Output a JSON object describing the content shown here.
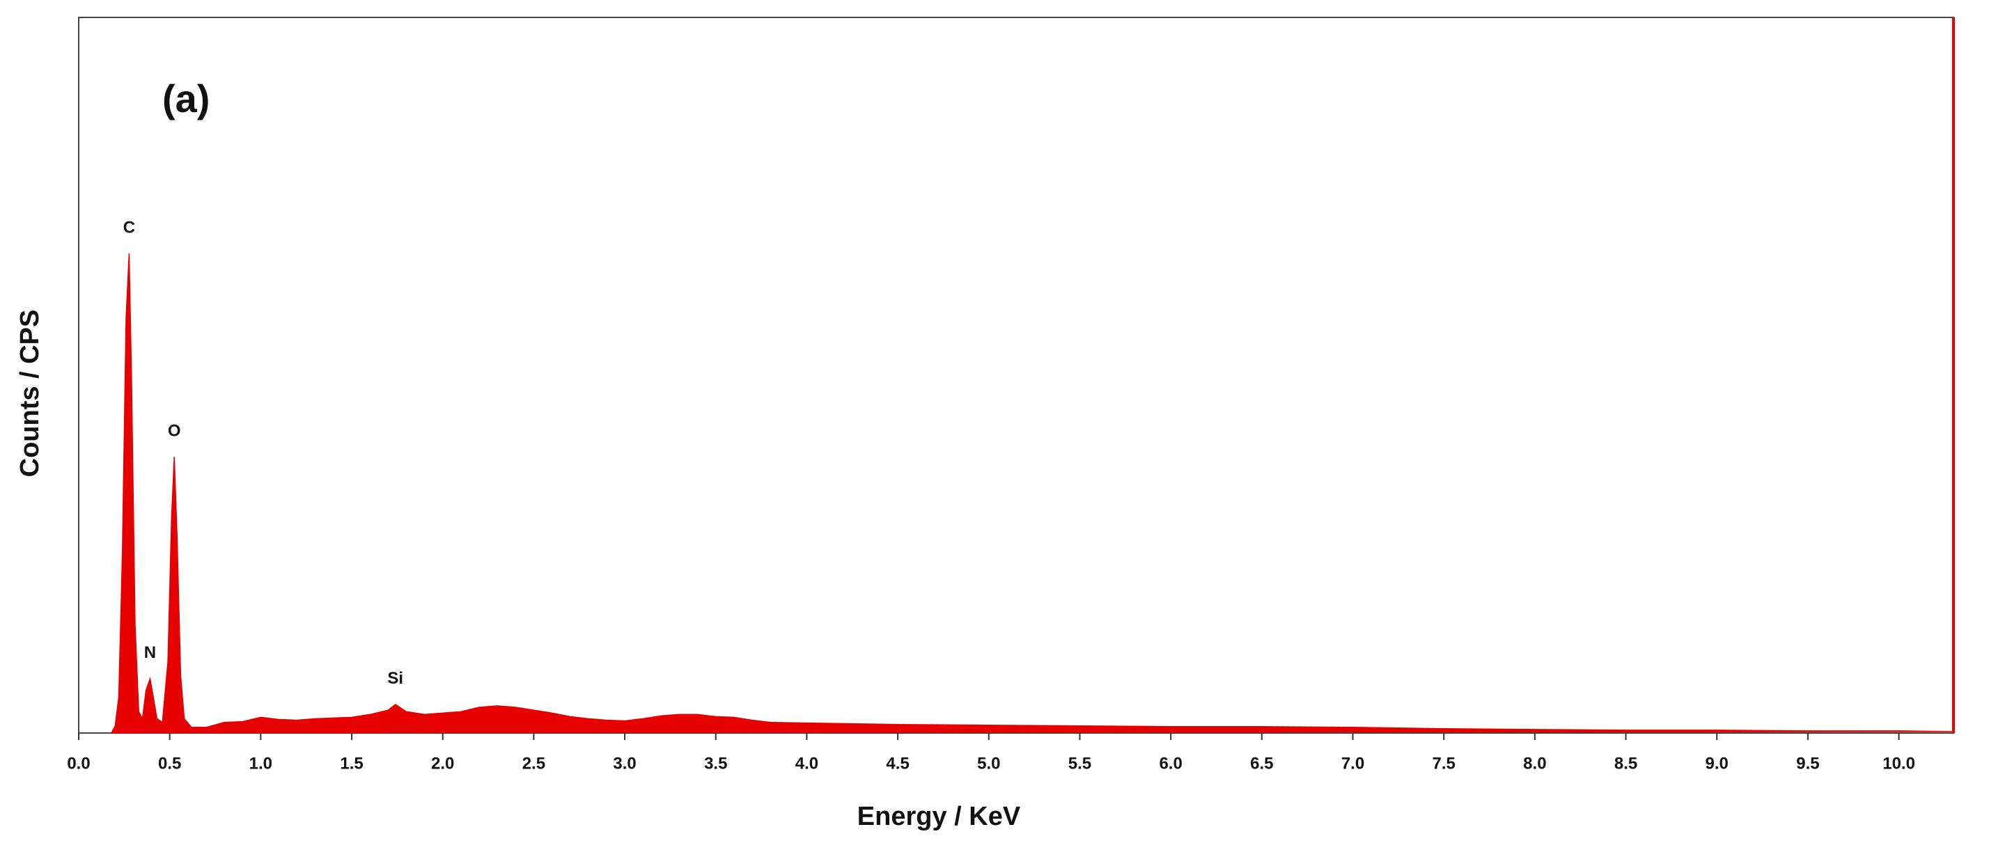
{
  "chart_data": {
    "type": "area",
    "panel_label": "(a)",
    "xlabel": "Energy / KeV",
    "ylabel": "Counts / CPS",
    "color": "#e60000",
    "x": [
      0.18,
      0.2,
      0.22,
      0.24,
      0.26,
      0.277,
      0.29,
      0.31,
      0.33,
      0.35,
      0.37,
      0.392,
      0.41,
      0.43,
      0.46,
      0.49,
      0.51,
      0.525,
      0.54,
      0.56,
      0.58,
      0.62,
      0.7,
      0.8,
      0.9,
      1.0,
      1.1,
      1.2,
      1.3,
      1.4,
      1.5,
      1.6,
      1.7,
      1.74,
      1.8,
      1.9,
      2.0,
      2.1,
      2.2,
      2.3,
      2.4,
      2.5,
      2.6,
      2.7,
      2.8,
      2.9,
      3.0,
      3.1,
      3.2,
      3.3,
      3.4,
      3.5,
      3.6,
      3.7,
      3.8,
      4.0,
      4.5,
      5.0,
      5.5,
      6.0,
      6.5,
      7.0,
      7.5,
      8.0,
      8.5,
      9.0,
      9.5,
      10.0,
      10.3
    ],
    "values": [
      0,
      1,
      5,
      25,
      58,
      67,
      50,
      15,
      3,
      2,
      6,
      7.6,
      5,
      2,
      1.5,
      10,
      30,
      38.6,
      28,
      8,
      2,
      0.8,
      0.8,
      1.5,
      1.6,
      2.2,
      1.9,
      1.8,
      2,
      2.1,
      2.2,
      2.6,
      3.2,
      4,
      3,
      2.6,
      2.8,
      3,
      3.6,
      3.8,
      3.6,
      3.2,
      2.8,
      2.3,
      2,
      1.8,
      1.7,
      2,
      2.4,
      2.6,
      2.6,
      2.3,
      2.2,
      1.8,
      1.5,
      1.4,
      1.2,
      1.1,
      1.0,
      0.9,
      0.9,
      0.8,
      0.6,
      0.5,
      0.4,
      0.4,
      0.3,
      0.3,
      0.2
    ],
    "peaks": [
      {
        "label": "C",
        "x": 0.277,
        "y": 67
      },
      {
        "label": "N",
        "x": 0.392,
        "y": 7.6
      },
      {
        "label": "O",
        "x": 0.525,
        "y": 38.6
      },
      {
        "label": "Si",
        "x": 1.74,
        "y": 4
      }
    ],
    "xlim": [
      0,
      10.3
    ],
    "ylim": [
      0,
      100
    ],
    "xticks": [
      {
        "value": 0,
        "label": "0.0"
      },
      {
        "value": 0.5,
        "label": "0.5"
      },
      {
        "value": 1,
        "label": "1.0"
      },
      {
        "value": 1.5,
        "label": "1.5"
      },
      {
        "value": 2,
        "label": "2.0"
      },
      {
        "value": 2.5,
        "label": "2.5"
      },
      {
        "value": 3,
        "label": "3.0"
      },
      {
        "value": 3.5,
        "label": "3.5"
      },
      {
        "value": 4,
        "label": "4.0"
      },
      {
        "value": 4.5,
        "label": "4.5"
      },
      {
        "value": 5,
        "label": "5.0"
      },
      {
        "value": 5.5,
        "label": "5.5"
      },
      {
        "value": 6,
        "label": "6.0"
      },
      {
        "value": 6.5,
        "label": "6.5"
      },
      {
        "value": 7,
        "label": "7.0"
      },
      {
        "value": 7.5,
        "label": "7.5"
      },
      {
        "value": 8,
        "label": "8.0"
      },
      {
        "value": 8.5,
        "label": "8.5"
      },
      {
        "value": 9,
        "label": "9.0"
      },
      {
        "value": 9.5,
        "label": "9.5"
      },
      {
        "value": 10,
        "label": "10.0"
      }
    ]
  }
}
